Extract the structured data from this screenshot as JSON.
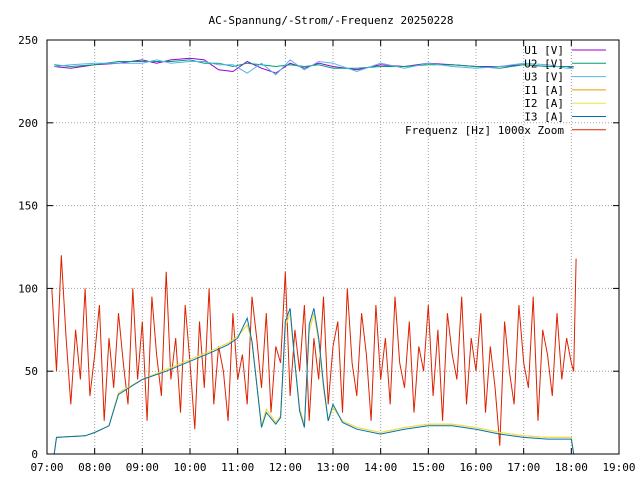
{
  "chart_data": {
    "type": "line",
    "title": "AC-Spannung/-Strom/-Frequenz 20250228",
    "xlabel": "",
    "ylabel": "",
    "xlim": [
      7,
      19
    ],
    "ylim": [
      0,
      250
    ],
    "grid": true,
    "legend_position": "top-right",
    "x_ticks": [
      {
        "value": 7,
        "label": "07:00"
      },
      {
        "value": 8,
        "label": "08:00"
      },
      {
        "value": 9,
        "label": "09:00"
      },
      {
        "value": 10,
        "label": "10:00"
      },
      {
        "value": 11,
        "label": "11:00"
      },
      {
        "value": 12,
        "label": "12:00"
      },
      {
        "value": 13,
        "label": "13:00"
      },
      {
        "value": 14,
        "label": "14:00"
      },
      {
        "value": 15,
        "label": "15:00"
      },
      {
        "value": 16,
        "label": "16:00"
      },
      {
        "value": 17,
        "label": "17:00"
      },
      {
        "value": 18,
        "label": "18:00"
      },
      {
        "value": 19,
        "label": "19:00"
      }
    ],
    "y_ticks": [
      {
        "value": 0,
        "label": "0"
      },
      {
        "value": 50,
        "label": "50"
      },
      {
        "value": 100,
        "label": "100"
      },
      {
        "value": 150,
        "label": "150"
      },
      {
        "value": 200,
        "label": "200"
      },
      {
        "value": 250,
        "label": "250"
      }
    ],
    "series": [
      {
        "name": "U1 [V]",
        "color": "#9400d3",
        "x": [
          7.15,
          7.5,
          8.0,
          8.5,
          9.0,
          9.3,
          9.6,
          10.0,
          10.3,
          10.6,
          10.9,
          11.2,
          11.5,
          11.8,
          12.1,
          12.4,
          12.7,
          13.0,
          13.5,
          14.0,
          14.5,
          15.0,
          15.5,
          16.0,
          16.5,
          17.0,
          17.5,
          17.9,
          18.05
        ],
        "y": [
          234,
          233,
          235,
          236,
          238,
          236,
          238,
          239,
          238,
          232,
          231,
          237,
          233,
          230,
          236,
          233,
          236,
          234,
          232,
          235,
          234,
          236,
          235,
          234,
          234,
          235,
          234,
          234,
          233
        ]
      },
      {
        "name": "U2 [V]",
        "color": "#009e73",
        "x": [
          7.15,
          7.5,
          8.0,
          8.5,
          9.0,
          9.3,
          9.6,
          10.0,
          10.3,
          10.6,
          10.9,
          11.2,
          11.5,
          11.8,
          12.1,
          12.4,
          12.7,
          13.0,
          13.5,
          14.0,
          14.5,
          15.0,
          15.5,
          16.0,
          16.5,
          17.0,
          17.5,
          17.9,
          18.05
        ],
        "y": [
          235,
          234,
          235,
          237,
          237,
          237,
          237,
          238,
          236,
          236,
          234,
          236,
          235,
          234,
          235,
          234,
          235,
          233,
          233,
          234,
          234,
          235,
          235,
          234,
          233,
          235,
          234,
          234,
          234
        ]
      },
      {
        "name": "U3 [V]",
        "color": "#56b4e9",
        "x": [
          7.15,
          7.5,
          8.0,
          8.5,
          9.0,
          9.3,
          9.6,
          10.0,
          10.3,
          10.6,
          10.9,
          11.2,
          11.5,
          11.8,
          12.1,
          12.4,
          12.7,
          13.0,
          13.5,
          14.0,
          14.5,
          15.0,
          15.5,
          16.0,
          16.5,
          17.0,
          17.5,
          17.9,
          18.05
        ],
        "y": [
          234,
          235,
          236,
          236,
          236,
          238,
          236,
          237,
          237,
          235,
          235,
          230,
          236,
          229,
          238,
          232,
          237,
          236,
          231,
          236,
          233,
          236,
          234,
          233,
          234,
          236,
          235,
          233,
          233
        ]
      },
      {
        "name": "I1 [A]",
        "color": "#e69f00",
        "x": [
          7.15,
          7.2,
          7.8,
          8.0,
          8.3,
          8.5,
          9.0,
          9.5,
          10.0,
          10.5,
          10.8,
          11.0,
          11.2,
          11.3,
          11.5,
          11.6,
          11.8,
          11.9,
          12.0,
          12.1,
          12.2,
          12.3,
          12.4,
          12.5,
          12.6,
          12.7,
          12.8,
          12.9,
          13.0,
          13.2,
          13.5,
          14.0,
          14.5,
          15.0,
          15.5,
          16.0,
          16.5,
          17.0,
          17.5,
          18.0,
          18.05
        ],
        "y": [
          0,
          10,
          11,
          13,
          17,
          37,
          45,
          51,
          57,
          63,
          67,
          71,
          78,
          68,
          17,
          27,
          19,
          23,
          77,
          85,
          55,
          28,
          17,
          74,
          85,
          68,
          40,
          20,
          28,
          20,
          16,
          13,
          16,
          18,
          18,
          16,
          13,
          11,
          10,
          10,
          0
        ]
      },
      {
        "name": "I2 [A]",
        "color": "#f0e442",
        "x": [
          7.15,
          7.2,
          7.8,
          8.0,
          8.3,
          8.5,
          9.0,
          9.5,
          10.0,
          10.5,
          10.8,
          11.0,
          11.2,
          11.3,
          11.5,
          11.6,
          11.8,
          11.9,
          12.0,
          12.1,
          12.2,
          12.3,
          12.4,
          12.5,
          12.6,
          12.7,
          12.8,
          12.9,
          13.0,
          13.2,
          13.5,
          14.0,
          14.5,
          15.0,
          15.5,
          16.0,
          16.5,
          17.0,
          17.5,
          18.0,
          18.05
        ],
        "y": [
          0,
          10,
          11,
          13,
          17,
          37,
          45,
          51,
          57,
          63,
          67,
          71,
          78,
          68,
          17,
          27,
          19,
          23,
          77,
          85,
          55,
          28,
          17,
          74,
          85,
          68,
          40,
          20,
          28,
          20,
          16,
          13,
          16,
          18,
          18,
          16,
          13,
          11,
          10,
          10,
          0
        ]
      },
      {
        "name": "I3 [A]",
        "color": "#0072b2",
        "x": [
          7.15,
          7.2,
          7.8,
          8.0,
          8.3,
          8.5,
          9.0,
          9.5,
          10.0,
          10.5,
          10.8,
          11.0,
          11.2,
          11.3,
          11.5,
          11.6,
          11.8,
          11.9,
          12.0,
          12.1,
          12.2,
          12.3,
          12.4,
          12.5,
          12.6,
          12.7,
          12.8,
          12.9,
          13.0,
          13.2,
          13.5,
          14.0,
          14.5,
          15.0,
          15.5,
          16.0,
          16.5,
          17.0,
          17.5,
          18.0,
          18.05
        ],
        "y": [
          0,
          10,
          11,
          13,
          17,
          36,
          45,
          50,
          56,
          62,
          66,
          70,
          82,
          68,
          16,
          25,
          18,
          22,
          80,
          88,
          55,
          26,
          16,
          78,
          88,
          70,
          42,
          20,
          30,
          19,
          15,
          12,
          15,
          17,
          17,
          15,
          12,
          10,
          9,
          9,
          0
        ]
      },
      {
        "name": "Frequenz [Hz] 1000x Zoom",
        "color": "#dd2200",
        "x": [
          7.1,
          7.2,
          7.3,
          7.4,
          7.5,
          7.6,
          7.7,
          7.8,
          7.9,
          8.0,
          8.1,
          8.2,
          8.3,
          8.4,
          8.5,
          8.6,
          8.7,
          8.8,
          8.9,
          9.0,
          9.1,
          9.2,
          9.3,
          9.4,
          9.5,
          9.6,
          9.7,
          9.8,
          9.9,
          10.0,
          10.1,
          10.2,
          10.3,
          10.4,
          10.5,
          10.6,
          10.7,
          10.8,
          10.9,
          11.0,
          11.1,
          11.2,
          11.3,
          11.4,
          11.5,
          11.6,
          11.7,
          11.8,
          11.9,
          12.0,
          12.1,
          12.2,
          12.3,
          12.4,
          12.5,
          12.6,
          12.7,
          12.8,
          12.9,
          13.0,
          13.1,
          13.2,
          13.3,
          13.4,
          13.5,
          13.6,
          13.7,
          13.8,
          13.9,
          14.0,
          14.1,
          14.2,
          14.3,
          14.4,
          14.5,
          14.6,
          14.7,
          14.8,
          14.9,
          15.0,
          15.1,
          15.2,
          15.3,
          15.4,
          15.5,
          15.6,
          15.7,
          15.8,
          15.9,
          16.0,
          16.1,
          16.2,
          16.3,
          16.4,
          16.5,
          16.6,
          16.7,
          16.8,
          16.9,
          17.0,
          17.1,
          17.2,
          17.3,
          17.4,
          17.5,
          17.6,
          17.7,
          17.8,
          17.9,
          18.0,
          18.05,
          18.1
        ],
        "y": [
          100,
          50,
          120,
          70,
          30,
          75,
          45,
          100,
          35,
          60,
          90,
          20,
          70,
          40,
          85,
          55,
          30,
          100,
          45,
          80,
          20,
          95,
          60,
          35,
          110,
          45,
          70,
          25,
          90,
          55,
          15,
          80,
          40,
          100,
          30,
          65,
          50,
          20,
          85,
          45,
          60,
          30,
          95,
          70,
          40,
          85,
          25,
          65,
          55,
          110,
          35,
          75,
          50,
          90,
          20,
          70,
          45,
          95,
          30,
          65,
          80,
          25,
          100,
          55,
          35,
          85,
          60,
          20,
          90,
          45,
          70,
          30,
          95,
          55,
          40,
          80,
          25,
          65,
          50,
          90,
          35,
          75,
          20,
          85,
          60,
          45,
          95,
          30,
          70,
          50,
          85,
          25,
          65,
          40,
          5,
          80,
          50,
          30,
          90,
          55,
          40,
          95,
          20,
          75,
          60,
          35,
          85,
          45,
          70,
          55,
          50,
          118
        ]
      }
    ]
  }
}
